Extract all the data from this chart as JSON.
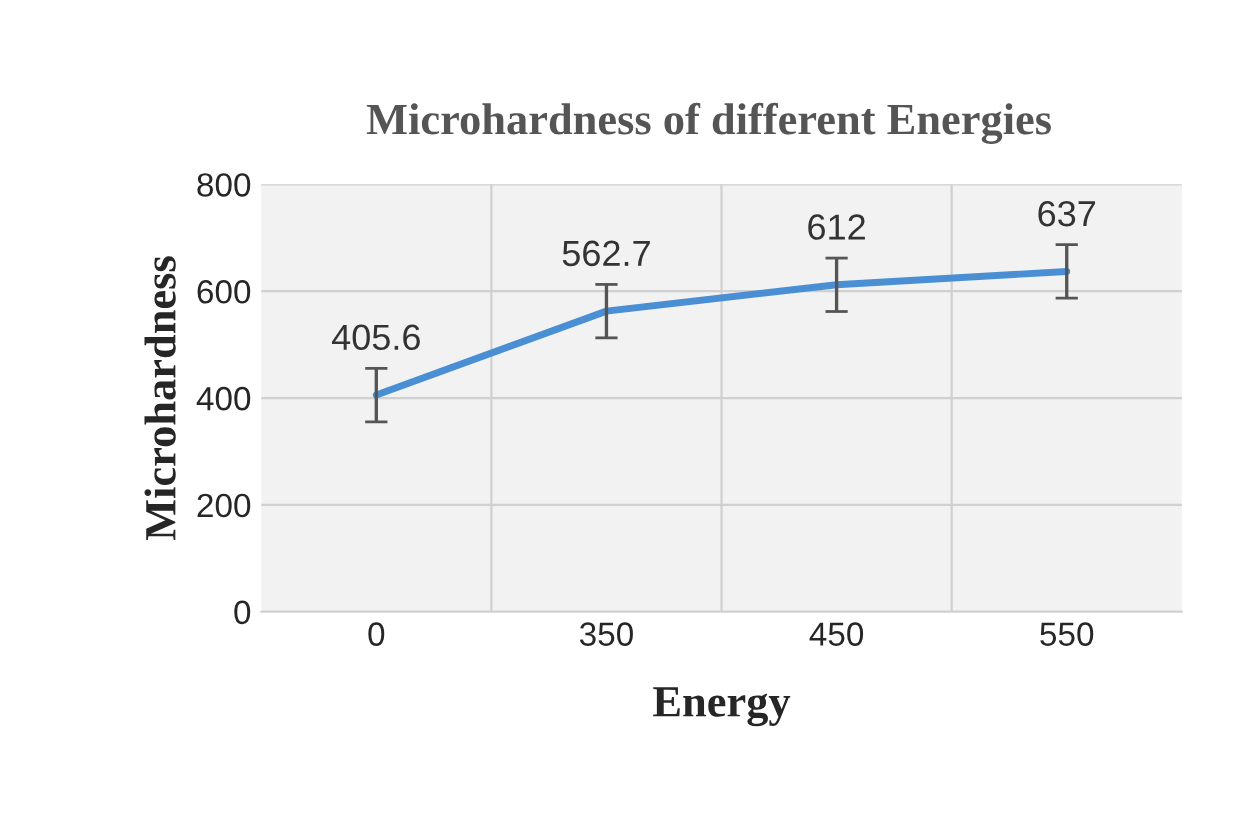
{
  "chart_data": {
    "type": "line",
    "title": "Microhardness of different Energies",
    "xlabel": "Energy",
    "ylabel": "Microhardness",
    "categories": [
      "0",
      "350",
      "450",
      "550"
    ],
    "series": [
      {
        "color": "#4a8fd4",
        "values": [
          405.6,
          562.7,
          612,
          637
        ],
        "errors": [
          50,
          50,
          50,
          50
        ]
      }
    ],
    "ylim": [
      0,
      800
    ],
    "yticks": [
      0,
      200,
      400,
      600,
      800
    ],
    "grid": true,
    "data_labels": true,
    "marker": "none",
    "line_style": "solid"
  }
}
